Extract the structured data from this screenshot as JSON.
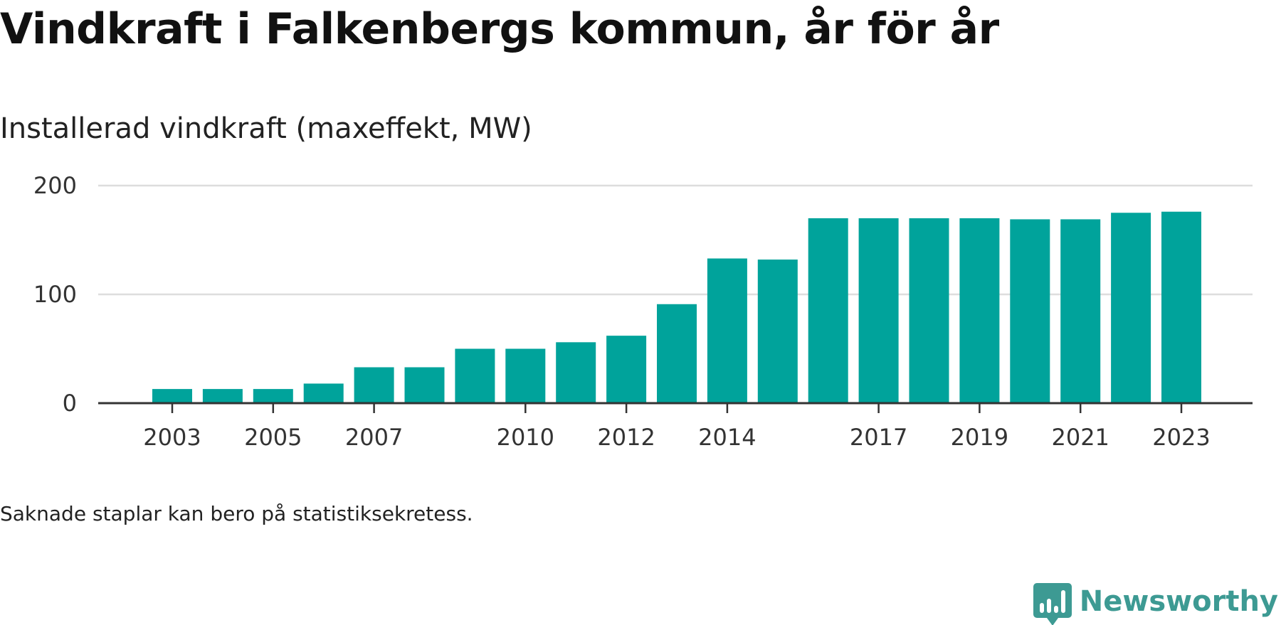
{
  "title": "Vindkraft i Falkenbergs kommun, år för år",
  "subtitle": "Installerad vindkraft (maxeffekt, MW)",
  "footnote": "Saknade staplar kan bero på statistiksekretess.",
  "brand": {
    "name": "Newsworthy",
    "icon": "newsworthy-logo-icon"
  },
  "colors": {
    "bar": "#00a39b",
    "grid": "#dddddd",
    "axis": "#333333",
    "brand": "#3d9a93"
  },
  "chart_data": {
    "type": "bar",
    "title": "Vindkraft i Falkenbergs kommun, år för år",
    "ylabel": "Installerad vindkraft (maxeffekt, MW)",
    "xlabel": "",
    "ylim": [
      0,
      200
    ],
    "yticks": [
      0,
      100,
      200
    ],
    "grid": true,
    "categories": [
      "2003",
      "2004",
      "2005",
      "2006",
      "2007",
      "2008",
      "2009",
      "2010",
      "2011",
      "2012",
      "2013",
      "2014",
      "2015",
      "2016",
      "2017",
      "2018",
      "2019",
      "2020",
      "2021",
      "2022",
      "2023"
    ],
    "xtick_labels": [
      "2003",
      "2005",
      "2007",
      "2010",
      "2012",
      "2014",
      "2017",
      "2019",
      "2021",
      "2023"
    ],
    "values": [
      13,
      13,
      13,
      18,
      33,
      33,
      50,
      50,
      56,
      62,
      91,
      133,
      132,
      170,
      170,
      170,
      170,
      169,
      169,
      175,
      176
    ]
  }
}
